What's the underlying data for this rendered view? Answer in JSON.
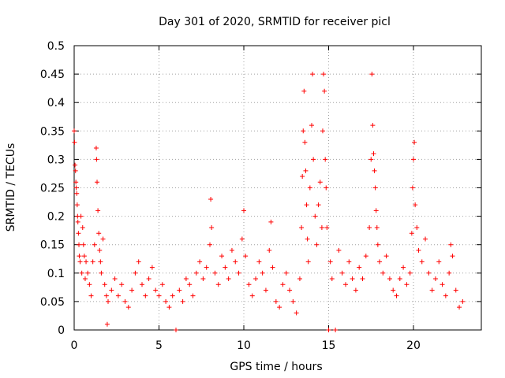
{
  "chart_data": {
    "type": "scatter",
    "title": "Day 301 of 2020, SRMTID for receiver picl",
    "xlabel": "GPS time / hours",
    "ylabel": "SRMTID / TECUs",
    "xlim": [
      0,
      24
    ],
    "ylim": [
      0,
      0.5
    ],
    "x_ticks": [
      0,
      5,
      10,
      15,
      20
    ],
    "y_ticks": [
      0,
      0.05,
      0.1,
      0.15,
      0.2,
      0.25,
      0.3,
      0.35,
      0.4,
      0.45,
      0.5
    ],
    "x_tick_labels": [
      "0",
      "5",
      "10",
      "15",
      "20"
    ],
    "y_tick_labels": [
      "0",
      "0.05",
      "0.1",
      "0.15",
      "0.2",
      "0.25",
      "0.3",
      "0.35",
      "0.4",
      "0.45",
      "0.5"
    ],
    "grid": true,
    "marker": "plus",
    "color": "#ff0000",
    "series": [
      {
        "name": "SRMTID",
        "points": [
          [
            0.0,
            0.35
          ],
          [
            0.02,
            0.33
          ],
          [
            0.05,
            0.29
          ],
          [
            0.08,
            0.28
          ],
          [
            0.1,
            0.26
          ],
          [
            0.12,
            0.25
          ],
          [
            0.15,
            0.24
          ],
          [
            0.18,
            0.22
          ],
          [
            0.2,
            0.2
          ],
          [
            0.22,
            0.19
          ],
          [
            0.25,
            0.17
          ],
          [
            0.28,
            0.15
          ],
          [
            0.3,
            0.13
          ],
          [
            0.35,
            0.12
          ],
          [
            0.4,
            0.2
          ],
          [
            0.45,
            0.1
          ],
          [
            0.5,
            0.18
          ],
          [
            0.55,
            0.15
          ],
          [
            0.6,
            0.13
          ],
          [
            0.65,
            0.09
          ],
          [
            0.7,
            0.12
          ],
          [
            0.8,
            0.1
          ],
          [
            0.9,
            0.08
          ],
          [
            1.0,
            0.06
          ],
          [
            1.1,
            0.12
          ],
          [
            1.2,
            0.15
          ],
          [
            1.3,
            0.32
          ],
          [
            1.32,
            0.3
          ],
          [
            1.35,
            0.26
          ],
          [
            1.4,
            0.21
          ],
          [
            1.45,
            0.17
          ],
          [
            1.5,
            0.14
          ],
          [
            1.55,
            0.12
          ],
          [
            1.6,
            0.1
          ],
          [
            1.7,
            0.16
          ],
          [
            1.8,
            0.08
          ],
          [
            1.9,
            0.06
          ],
          [
            1.95,
            0.01
          ],
          [
            2.0,
            0.05
          ],
          [
            2.2,
            0.07
          ],
          [
            2.4,
            0.09
          ],
          [
            2.6,
            0.06
          ],
          [
            2.8,
            0.08
          ],
          [
            3.0,
            0.05
          ],
          [
            3.2,
            0.04
          ],
          [
            3.4,
            0.07
          ],
          [
            3.6,
            0.1
          ],
          [
            3.8,
            0.12
          ],
          [
            4.0,
            0.08
          ],
          [
            4.2,
            0.06
          ],
          [
            4.4,
            0.09
          ],
          [
            4.6,
            0.11
          ],
          [
            4.8,
            0.07
          ],
          [
            5.0,
            0.06
          ],
          [
            5.2,
            0.08
          ],
          [
            5.4,
            0.05
          ],
          [
            5.6,
            0.04
          ],
          [
            5.8,
            0.06
          ],
          [
            6.0,
            0.0
          ],
          [
            6.2,
            0.07
          ],
          [
            6.4,
            0.05
          ],
          [
            6.6,
            0.09
          ],
          [
            6.8,
            0.08
          ],
          [
            7.0,
            0.06
          ],
          [
            7.2,
            0.1
          ],
          [
            7.4,
            0.12
          ],
          [
            7.6,
            0.09
          ],
          [
            7.8,
            0.11
          ],
          [
            8.0,
            0.15
          ],
          [
            8.05,
            0.23
          ],
          [
            8.1,
            0.18
          ],
          [
            8.3,
            0.1
          ],
          [
            8.5,
            0.08
          ],
          [
            8.7,
            0.13
          ],
          [
            8.9,
            0.11
          ],
          [
            9.1,
            0.09
          ],
          [
            9.3,
            0.14
          ],
          [
            9.5,
            0.12
          ],
          [
            9.7,
            0.1
          ],
          [
            9.9,
            0.16
          ],
          [
            10.0,
            0.21
          ],
          [
            10.1,
            0.13
          ],
          [
            10.3,
            0.08
          ],
          [
            10.5,
            0.06
          ],
          [
            10.7,
            0.09
          ],
          [
            10.9,
            0.12
          ],
          [
            11.1,
            0.1
          ],
          [
            11.3,
            0.07
          ],
          [
            11.5,
            0.14
          ],
          [
            11.6,
            0.19
          ],
          [
            11.7,
            0.11
          ],
          [
            11.9,
            0.05
          ],
          [
            12.1,
            0.04
          ],
          [
            12.3,
            0.08
          ],
          [
            12.5,
            0.1
          ],
          [
            12.7,
            0.07
          ],
          [
            12.9,
            0.05
          ],
          [
            13.1,
            0.03
          ],
          [
            13.3,
            0.09
          ],
          [
            13.4,
            0.18
          ],
          [
            13.45,
            0.27
          ],
          [
            13.5,
            0.35
          ],
          [
            13.55,
            0.42
          ],
          [
            13.6,
            0.33
          ],
          [
            13.65,
            0.28
          ],
          [
            13.7,
            0.22
          ],
          [
            13.75,
            0.16
          ],
          [
            13.8,
            0.12
          ],
          [
            13.9,
            0.25
          ],
          [
            14.0,
            0.36
          ],
          [
            14.05,
            0.45
          ],
          [
            14.1,
            0.3
          ],
          [
            14.2,
            0.2
          ],
          [
            14.3,
            0.15
          ],
          [
            14.4,
            0.22
          ],
          [
            14.5,
            0.26
          ],
          [
            14.6,
            0.18
          ],
          [
            14.65,
            0.35
          ],
          [
            14.7,
            0.45
          ],
          [
            14.75,
            0.42
          ],
          [
            14.8,
            0.3
          ],
          [
            14.85,
            0.25
          ],
          [
            14.9,
            0.18
          ],
          [
            15.0,
            0.0
          ],
          [
            15.1,
            0.12
          ],
          [
            15.2,
            0.09
          ],
          [
            15.4,
            0.0
          ],
          [
            15.6,
            0.14
          ],
          [
            15.8,
            0.1
          ],
          [
            16.0,
            0.08
          ],
          [
            16.2,
            0.12
          ],
          [
            16.4,
            0.09
          ],
          [
            16.6,
            0.07
          ],
          [
            16.8,
            0.11
          ],
          [
            17.0,
            0.09
          ],
          [
            17.2,
            0.13
          ],
          [
            17.4,
            0.18
          ],
          [
            17.5,
            0.3
          ],
          [
            17.55,
            0.45
          ],
          [
            17.6,
            0.36
          ],
          [
            17.65,
            0.31
          ],
          [
            17.7,
            0.28
          ],
          [
            17.75,
            0.25
          ],
          [
            17.8,
            0.21
          ],
          [
            17.85,
            0.18
          ],
          [
            17.9,
            0.15
          ],
          [
            18.0,
            0.12
          ],
          [
            18.2,
            0.1
          ],
          [
            18.4,
            0.13
          ],
          [
            18.6,
            0.09
          ],
          [
            18.8,
            0.07
          ],
          [
            19.0,
            0.06
          ],
          [
            19.2,
            0.09
          ],
          [
            19.4,
            0.11
          ],
          [
            19.6,
            0.08
          ],
          [
            19.8,
            0.1
          ],
          [
            19.9,
            0.17
          ],
          [
            19.95,
            0.25
          ],
          [
            20.0,
            0.3
          ],
          [
            20.05,
            0.33
          ],
          [
            20.1,
            0.22
          ],
          [
            20.2,
            0.18
          ],
          [
            20.3,
            0.14
          ],
          [
            20.5,
            0.12
          ],
          [
            20.7,
            0.16
          ],
          [
            20.9,
            0.1
          ],
          [
            21.1,
            0.07
          ],
          [
            21.3,
            0.09
          ],
          [
            21.5,
            0.12
          ],
          [
            21.7,
            0.08
          ],
          [
            21.9,
            0.06
          ],
          [
            22.1,
            0.1
          ],
          [
            22.2,
            0.15
          ],
          [
            22.3,
            0.13
          ],
          [
            22.5,
            0.07
          ],
          [
            22.7,
            0.04
          ],
          [
            22.9,
            0.05
          ]
        ]
      }
    ]
  }
}
